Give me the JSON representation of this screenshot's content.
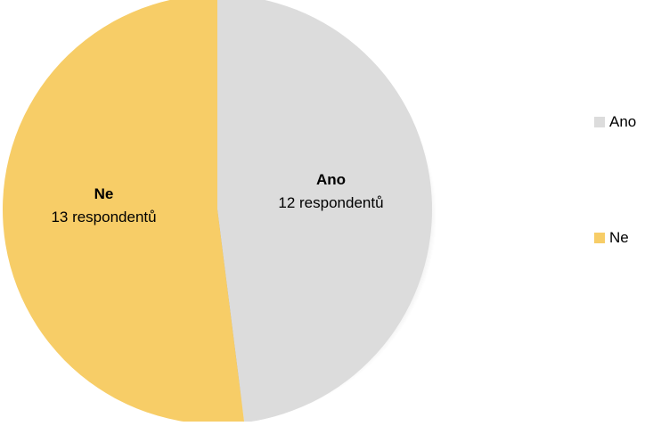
{
  "chart_data": {
    "type": "pie",
    "title": "",
    "legend_position": "right",
    "slices": [
      {
        "label": "Ano",
        "value": 12,
        "value_text": "12 respondentů",
        "color": "#DCDCDC"
      },
      {
        "label": "Ne",
        "value": 13,
        "value_text": "13 respondentů",
        "color": "#F7CD67"
      }
    ]
  },
  "legend": {
    "items": [
      {
        "label": "Ano",
        "color": "#DCDCDC"
      },
      {
        "label": "Ne",
        "color": "#F7CD67"
      }
    ]
  }
}
